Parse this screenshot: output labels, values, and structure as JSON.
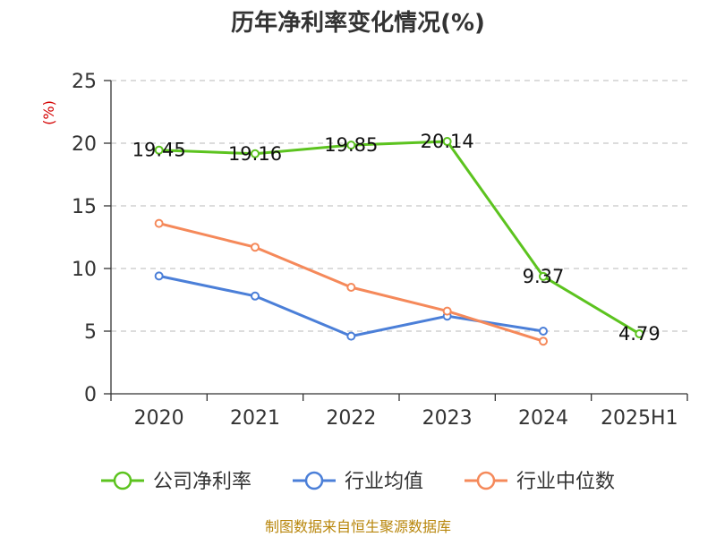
{
  "chart_data": {
    "type": "line",
    "title": "历年净利率变化情况(%)",
    "ylabel": "(%)",
    "categories": [
      "2020",
      "2021",
      "2022",
      "2023",
      "2024",
      "2025H1"
    ],
    "ylim": [
      0,
      25
    ],
    "yticks": [
      0,
      5,
      10,
      15,
      20,
      25
    ],
    "grid": true,
    "legend_position": "bottom",
    "series": [
      {
        "name": "公司净利率",
        "color": "#5cc31f",
        "values": [
          19.45,
          19.16,
          19.85,
          20.14,
          9.37,
          4.79
        ],
        "labels": [
          "19.45",
          "19.16",
          "19.85",
          "20.14",
          "9.37",
          "4.79"
        ]
      },
      {
        "name": "行业均值",
        "color": "#4b7fd8",
        "values": [
          9.4,
          7.8,
          4.6,
          6.2,
          5.0,
          null
        ]
      },
      {
        "name": "行业中位数",
        "color": "#f5895a",
        "values": [
          13.6,
          11.7,
          8.5,
          6.6,
          4.2,
          null
        ]
      }
    ],
    "source": "制图数据来自恒生聚源数据库"
  }
}
